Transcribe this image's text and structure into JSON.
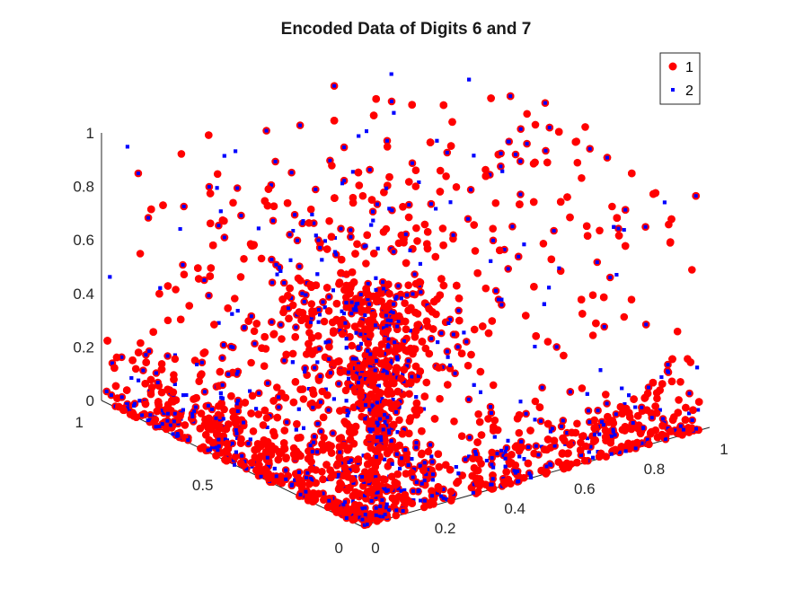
{
  "chart_data": {
    "type": "scatter",
    "dimensions": 3,
    "title": "Encoded Data of Digits 6 and 7",
    "xlabel": "",
    "ylabel": "",
    "zlabel": "",
    "xlim": [
      0,
      1
    ],
    "ylim": [
      0,
      1
    ],
    "zlim": [
      0,
      1
    ],
    "x_ticks": [
      "0",
      "0.5",
      "1"
    ],
    "y_ticks": [
      "0",
      "0.2",
      "0.4",
      "0.6",
      "0.8",
      "1"
    ],
    "z_ticks": [
      "0",
      "0.2",
      "0.4",
      "0.6",
      "0.8",
      "1"
    ],
    "grid": false,
    "legend_position": "top-right",
    "series": [
      {
        "name": "1",
        "marker": "circle",
        "color": "#ff0000"
      },
      {
        "name": "2",
        "marker": "square",
        "color": "#0000ff"
      }
    ]
  }
}
